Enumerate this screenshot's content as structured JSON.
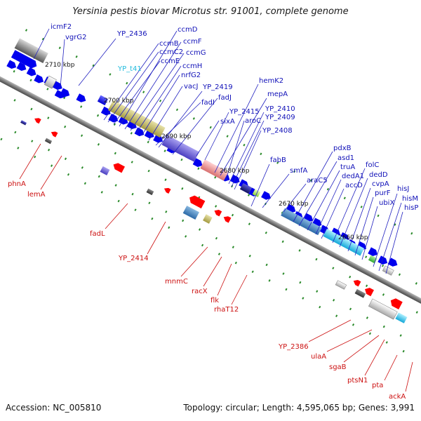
{
  "title": "Yersinia pestis biovar Microtus str. 91001, complete genome",
  "footer": {
    "accession": "Accession: NC_005810",
    "summary": "Topology: circular; Length: 4,595,065 bp; Genes: 3,991"
  },
  "scale_labels": [
    "2710 kbp",
    "2700 kbp",
    "2690 kbp",
    "2680 kbp",
    "2670 kbp",
    "2660 kbp"
  ],
  "colors": {
    "forward_label": "#1010b8",
    "reverse_label": "#cc1010",
    "highlight_label": "#22bbdd",
    "cds_arrow_forward": "#0000ee",
    "cds_arrow_reverse": "#ff0000",
    "backbone": "#8c8c8c",
    "scale_tick": "#2a8a2a"
  },
  "forward_labels": [
    "icmF2",
    "vgrG2",
    "YP_2436",
    "YP_t41",
    "ccmB",
    "ccmC2",
    "ccmE",
    "ccmD",
    "ccmF",
    "ccmG",
    "ccmH",
    "nrfG2",
    "vacJ",
    "fadI",
    "YP_2419",
    "fadJ",
    "sixA",
    "YP_2415",
    "hemK2",
    "mepA",
    "aroC",
    "YP_2410",
    "YP_2409",
    "YP_2408",
    "fabB",
    "smfA",
    "araC5",
    "pdxB",
    "asd1",
    "truA",
    "dedA1",
    "accD",
    "folC",
    "dedD",
    "cvpA",
    "purF",
    "ubiX",
    "hisJ",
    "hisM",
    "hisP"
  ],
  "reverse_labels": [
    "phnA",
    "lemA",
    "fadL",
    "YP_2414",
    "mnmC",
    "racX",
    "flk",
    "rhaT12",
    "YP_2386",
    "ulaA",
    "sgaB",
    "ptsN1",
    "pta",
    "ackA"
  ]
}
